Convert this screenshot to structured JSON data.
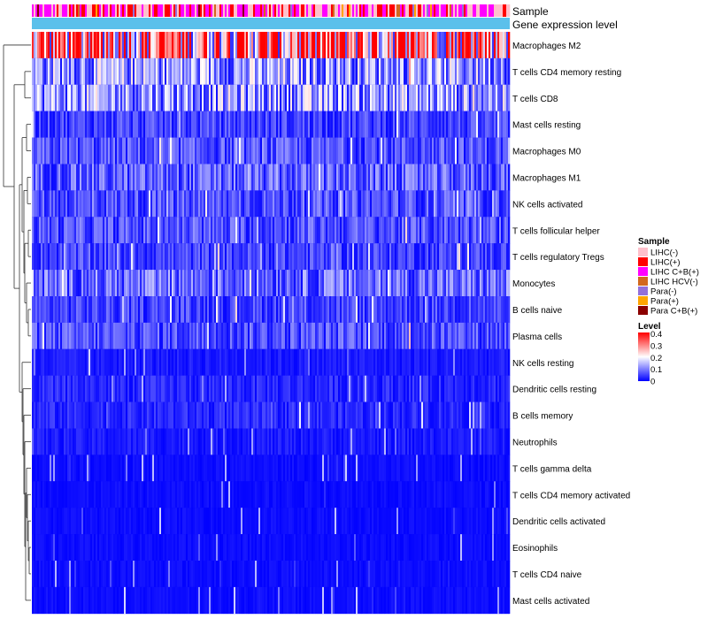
{
  "chart_data": {
    "type": "heatmap",
    "annotation_labels": {
      "sample": "Sample",
      "gene": "Gene expression level"
    },
    "rows": [
      {
        "label": "Macrophages M2",
        "level": 0.3
      },
      {
        "label": "T cells CD4 memory resting",
        "level": 0.12
      },
      {
        "label": "T cells CD8",
        "level": 0.12
      },
      {
        "label": "Mast cells resting",
        "level": 0.05
      },
      {
        "label": "Macrophages M0",
        "level": 0.06
      },
      {
        "label": "Macrophages M1",
        "level": 0.07
      },
      {
        "label": "NK cells activated",
        "level": 0.06
      },
      {
        "label": "T cells follicular helper",
        "level": 0.06
      },
      {
        "label": "T cells regulatory  Tregs",
        "level": 0.05
      },
      {
        "label": "Monocytes",
        "level": 0.08
      },
      {
        "label": "B cells naive",
        "level": 0.05
      },
      {
        "label": "Plasma cells",
        "level": 0.06
      },
      {
        "label": "NK cells resting",
        "level": 0.02
      },
      {
        "label": "Dendritic cells resting",
        "level": 0.03
      },
      {
        "label": "B cells memory",
        "level": 0.03
      },
      {
        "label": "Neutrophils",
        "level": 0.02
      },
      {
        "label": "T cells gamma delta",
        "level": 0.01
      },
      {
        "label": "T cells CD4 memory activated",
        "level": 0.01
      },
      {
        "label": "Dendritic cells activated",
        "level": 0.01
      },
      {
        "label": "Eosinophils",
        "level": 0.01
      },
      {
        "label": "T cells CD4 naive",
        "level": 0.01
      },
      {
        "label": "Mast cells activated",
        "level": 0.01
      }
    ],
    "n_samples": 270,
    "legend_sample": {
      "title": "Sample",
      "entries": [
        {
          "label": "LIHC(-)",
          "color": "#ffc0cb"
        },
        {
          "label": "LIHC(+)",
          "color": "#ff0000"
        },
        {
          "label": "LIHC C+B(+)",
          "color": "#ff00ff"
        },
        {
          "label": "LIHC HCV(-)",
          "color": "#d2691e"
        },
        {
          "label": "Para(-)",
          "color": "#9370db"
        },
        {
          "label": "Para(+)",
          "color": "#ffa500"
        },
        {
          "label": "Para C+B(+)",
          "color": "#8b0000"
        }
      ]
    },
    "legend_level": {
      "title": "Level",
      "ticks": [
        "0.4",
        "0.3",
        "0.2",
        "0.1",
        "0"
      ],
      "colors": [
        "#0000ff",
        "#ffffff",
        "#ff0000"
      ],
      "range": [
        0,
        0.4
      ]
    },
    "gene_bar_color": "#5bc0eb"
  }
}
